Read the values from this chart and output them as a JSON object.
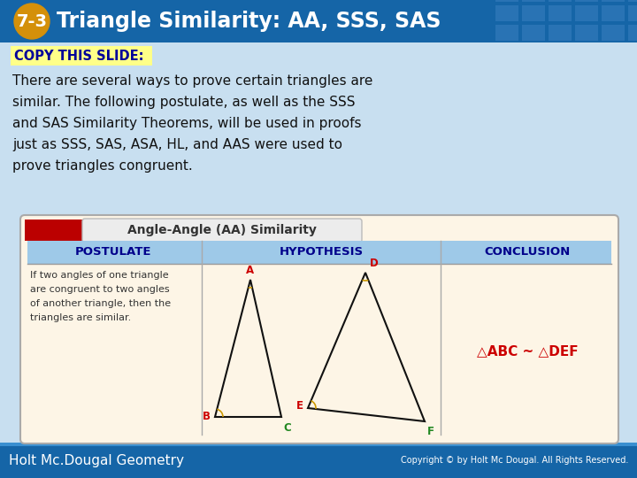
{
  "title": "Triangle Similarity: AA, SSS, SAS",
  "lesson_num": "7-3",
  "copy_label": "COPY THIS SLIDE:",
  "body_lines": [
    "There are several ways to prove certain triangles are",
    "similar. The following postulate, as well as the SSS",
    "and SAS Similarity Theorems, will be used in proofs",
    "just as SSS, SAS, ASA, HL, and AAS were used to",
    "prove triangles congruent."
  ],
  "header_bg": "#1565a7",
  "header_grid_color": "#3a7fc0",
  "badge_color": "#d4900a",
  "copy_bg": "#ffff88",
  "copy_text_color": "#000099",
  "footer_bg": "#1565a7",
  "footer_text": "Holt Mc.Dougal Geometry",
  "footer_right": "Copyright © by Holt Mc Dougal. All Rights Reserved.",
  "table_title": "Angle-Angle (AA) Similarity",
  "table_header_bg": "#9ec9e8",
  "table_body_bg": "#fdf5e6",
  "col_headers": [
    "POSTULATE",
    "HYPOTHESIS",
    "CONCLUSION"
  ],
  "col_header_color": "#00008B",
  "postulate_lines": [
    "If two angles of one triangle",
    "are congruent to two angles",
    "of another triangle, then the",
    "triangles are similar."
  ],
  "conclusion_text": "△ABC ~ △DEF",
  "red_bar_color": "#bb0000",
  "content_bg": "#c8dff0"
}
